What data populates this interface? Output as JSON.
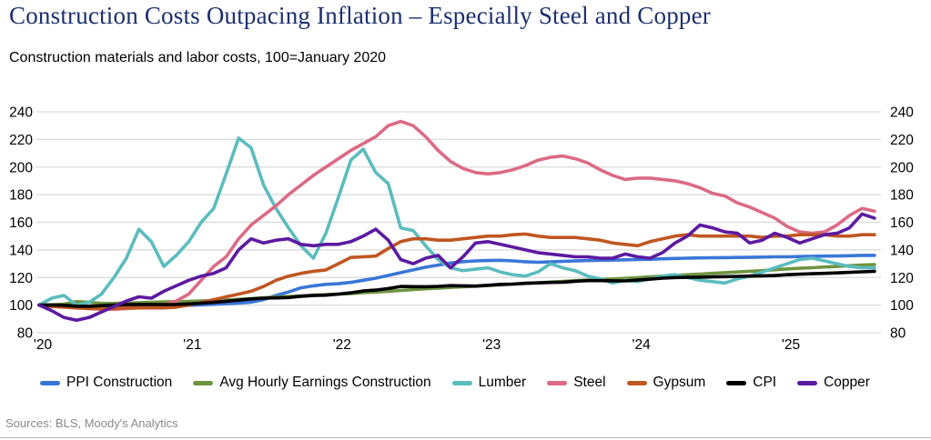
{
  "header": {
    "title": "Construction Costs Outpacing Inflation – Especially Steel and Copper",
    "subtitle": "Construction materials and labor costs, 100=January 2020"
  },
  "footer": {
    "source_note": "Sources: BLS, Moody's Analytics"
  },
  "chart_data": {
    "type": "line",
    "title": "Construction materials and labor costs",
    "index_base": "100=January 2020",
    "x_frequency": "monthly",
    "x_start": "2020-01",
    "x_end": "2025-08",
    "x_tick_labels": [
      "'20",
      "'21",
      "'22",
      "'23",
      "'24",
      "'25"
    ],
    "months_per_tick": 12,
    "ylim": [
      80,
      240
    ],
    "y_ticks": [
      80,
      100,
      120,
      140,
      160,
      180,
      200,
      220,
      240
    ],
    "y_axis_sides": "both",
    "grid": "horizontal",
    "legend_position": "bottom",
    "gridline_color": "#d9d9d9",
    "axis_text_color": "#000000",
    "series": [
      {
        "name": "PPI Construction",
        "color": "#3a76d8",
        "values": [
          100,
          99.8,
          99.6,
          99.3,
          99.2,
          99.3,
          99.4,
          99.4,
          99.5,
          99.5,
          99.6,
          99.7,
          99.9,
          100.2,
          100.6,
          101,
          101.5,
          102.2,
          104,
          107,
          109.5,
          112.5,
          114,
          115,
          115.5,
          116.5,
          118,
          119.5,
          121.5,
          123.5,
          125.5,
          127.5,
          129,
          130.5,
          131.5,
          132,
          132.3,
          132.5,
          132,
          131.4,
          131,
          131.3,
          131.7,
          132,
          132.3,
          132.5,
          132.6,
          132.8,
          133,
          133.2,
          133.5,
          133.8,
          134,
          134.2,
          134.3,
          134.4,
          134.5,
          134.6,
          134.8,
          135,
          135,
          135.2,
          135.4,
          135.5,
          135.6,
          135.8,
          136,
          136
        ]
      },
      {
        "name": "Avg Hourly Earnings Construction",
        "color": "#6f9440",
        "values": [
          100,
          100.3,
          100.7,
          102.5,
          102,
          101.3,
          101.2,
          101.5,
          101.8,
          102,
          102.3,
          102.5,
          102.7,
          103,
          103.3,
          103.7,
          104.2,
          104.7,
          105.3,
          105.8,
          106.2,
          106.7,
          107.2,
          107.6,
          108,
          108.4,
          109,
          109.5,
          110,
          110.6,
          111.2,
          111.8,
          112.3,
          112.8,
          113.3,
          113.7,
          114.2,
          114.7,
          115.2,
          115.7,
          116.2,
          116.7,
          117.2,
          117.7,
          118.1,
          118.5,
          118.9,
          119.4,
          119.9,
          120.4,
          121,
          121.5,
          122,
          122.5,
          123,
          123.5,
          124,
          124.5,
          125,
          125.6,
          126.2,
          126.7,
          127.1,
          127.6,
          128,
          128.5,
          129,
          129.4
        ]
      },
      {
        "name": "Lumber",
        "color": "#5bbcbe",
        "values": [
          100,
          105,
          107,
          100,
          102,
          108,
          120,
          134,
          155,
          146,
          128,
          136,
          146,
          160,
          170,
          195,
          221,
          214,
          187,
          170,
          156,
          143,
          134,
          152,
          178,
          205,
          213,
          196,
          188,
          156,
          154,
          143,
          133,
          127,
          125,
          126,
          127,
          124,
          122,
          121,
          124,
          130,
          127,
          125,
          121,
          119,
          116,
          118,
          117,
          119,
          121,
          122,
          120,
          118,
          117,
          116,
          119,
          121,
          124,
          127,
          130,
          133,
          134,
          132,
          130,
          128,
          127,
          127
        ]
      },
      {
        "name": "Steel",
        "color": "#dc6a84",
        "values": [
          100,
          99.5,
          99,
          98,
          97.5,
          97,
          97,
          97.5,
          98,
          98.5,
          100,
          103,
          108,
          118,
          128,
          135,
          148,
          158,
          165,
          172,
          180,
          187,
          194,
          200,
          206,
          212,
          217,
          222,
          230,
          233,
          230,
          222,
          212,
          204,
          199,
          196,
          195,
          196,
          198,
          201,
          205,
          207,
          208,
          206,
          203,
          198,
          194,
          191,
          192,
          192,
          191,
          190,
          188,
          185,
          181,
          179,
          174,
          171,
          167,
          163,
          157,
          153,
          152,
          153,
          158,
          165,
          170,
          168
        ]
      },
      {
        "name": "Gypsum",
        "color": "#c05621",
        "values": [
          100,
          99,
          98.5,
          98,
          97.5,
          97.5,
          97.5,
          98,
          98,
          98,
          98,
          98.5,
          100,
          102,
          104,
          106,
          108,
          110,
          113.5,
          118,
          121,
          123,
          124.5,
          125.5,
          130,
          134.5,
          135,
          135.5,
          141,
          146,
          148,
          148,
          147,
          147,
          148,
          149,
          150,
          150,
          151,
          151.5,
          150,
          149,
          149,
          149,
          148,
          147,
          145,
          144,
          143,
          146,
          148,
          150,
          151,
          150,
          150,
          150,
          150,
          150,
          149,
          150,
          150,
          151,
          151,
          151,
          150,
          150,
          151,
          151
        ]
      },
      {
        "name": "CPI",
        "color": "#000000",
        "values": [
          100,
          100.1,
          99.9,
          99.2,
          99.1,
          99.6,
          100.1,
          100.4,
          100.5,
          100.5,
          100.4,
          100.5,
          100.9,
          101.4,
          102,
          102.8,
          103.6,
          104.5,
          105,
          105.2,
          105.5,
          106.4,
          106.9,
          107.2,
          108,
          108.9,
          110.3,
          110.9,
          112,
          113.5,
          113.4,
          113.3,
          113.6,
          114.1,
          114,
          113.8,
          114.4,
          115,
          115.2,
          115.8,
          116.1,
          116.4,
          116.6,
          117.3,
          117.7,
          117.7,
          117.6,
          117.5,
          118.1,
          118.8,
          119.5,
          120,
          120.1,
          120.2,
          120.4,
          120.6,
          120.8,
          121,
          121.2,
          121.4,
          122,
          122.4,
          122.7,
          123,
          123.3,
          123.7,
          124.1,
          124.5
        ]
      },
      {
        "name": "Copper",
        "color": "#5c1aa0",
        "values": [
          100,
          96,
          91,
          89,
          91,
          95,
          99,
          103,
          106,
          105,
          110,
          114,
          118,
          121,
          123,
          127,
          140,
          148,
          145,
          147,
          148,
          144,
          143,
          144,
          144,
          146,
          150,
          155,
          147,
          133,
          130,
          134,
          136,
          127,
          135,
          145,
          146,
          144,
          142,
          140,
          138,
          137,
          136,
          135,
          135,
          134,
          134,
          137,
          135,
          134,
          138,
          145,
          150,
          158,
          156,
          153,
          152,
          145,
          147,
          152,
          149,
          145,
          148,
          151,
          152,
          156,
          166,
          163
        ]
      }
    ]
  }
}
